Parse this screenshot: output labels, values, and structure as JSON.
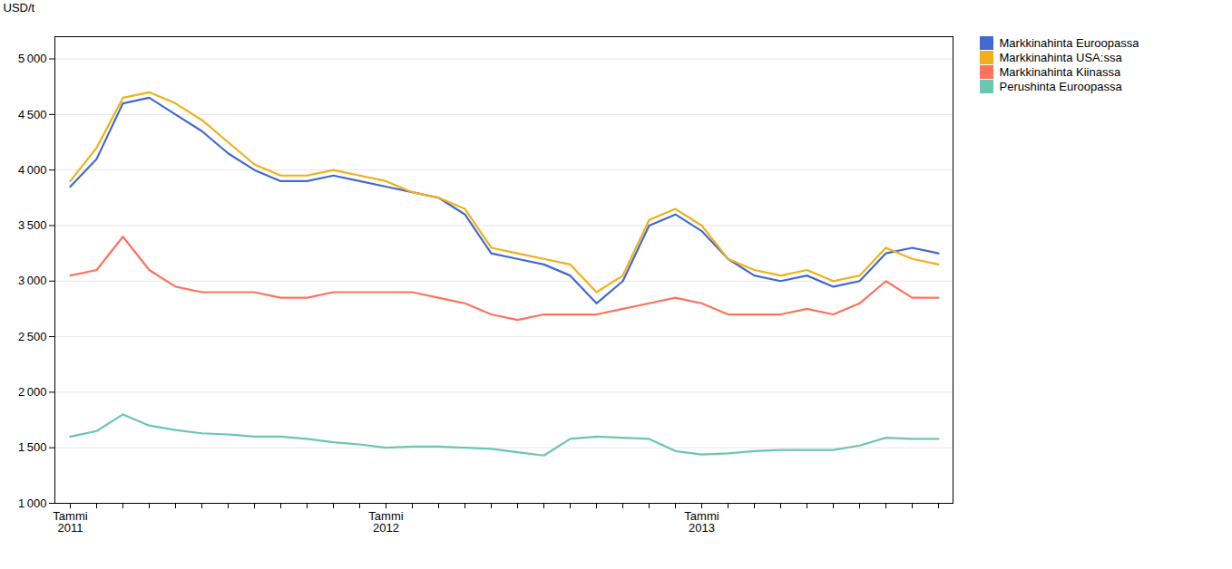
{
  "chart_data": {
    "type": "line",
    "ylabel": "USD/t",
    "categories": [
      "Tammi\n2011",
      null,
      null,
      null,
      null,
      null,
      null,
      null,
      null,
      null,
      null,
      null,
      "Tammi\n2012",
      null,
      null,
      null,
      null,
      null,
      null,
      null,
      null,
      null,
      null,
      null,
      "Tammi\n2013",
      null,
      null,
      null,
      null,
      null,
      null,
      null,
      null,
      null
    ],
    "series": [
      {
        "name": "Markkinahinta Euroopassa",
        "values": [
          3850,
          4100,
          4600,
          4650,
          4500,
          4350,
          4150,
          4000,
          3900,
          3900,
          3950,
          3900,
          3850,
          3800,
          3750,
          3600,
          3250,
          3200,
          3150,
          3050,
          2800,
          3000,
          3500,
          3600,
          3450,
          3200,
          3050,
          3000,
          3050,
          2950,
          3000,
          3250,
          3300,
          3250
        ]
      },
      {
        "name": "Markkinahinta USA:ssa",
        "values": [
          3900,
          4200,
          4650,
          4700,
          4600,
          4450,
          4250,
          4050,
          3950,
          3950,
          4000,
          3950,
          3900,
          3800,
          3750,
          3650,
          3300,
          3250,
          3200,
          3150,
          2900,
          3050,
          3550,
          3650,
          3500,
          3200,
          3100,
          3050,
          3100,
          3000,
          3050,
          3300,
          3200,
          3150
        ]
      },
      {
        "name": "Markkinahinta Kiinassa",
        "values": [
          3050,
          3100,
          3400,
          3100,
          2950,
          2900,
          2900,
          2900,
          2850,
          2850,
          2900,
          2900,
          2900,
          2900,
          2850,
          2800,
          2700,
          2650,
          2700,
          2700,
          2700,
          2750,
          2800,
          2850,
          2800,
          2700,
          2700,
          2700,
          2750,
          2700,
          2800,
          3000,
          2850,
          2850
        ]
      },
      {
        "name": "Perushinta Euroopassa",
        "values": [
          1600,
          1650,
          1800,
          1700,
          1660,
          1630,
          1620,
          1600,
          1600,
          1580,
          1550,
          1530,
          1500,
          1510,
          1510,
          1500,
          1490,
          1460,
          1430,
          1580,
          1600,
          1590,
          1580,
          1470,
          1440,
          1450,
          1470,
          1480,
          1480,
          1480,
          1520,
          1590,
          1580,
          1580
        ]
      }
    ],
    "ylim": [
      1000,
      5200
    ],
    "yticks": [
      {
        "value": 1000,
        "label": "1 000"
      },
      {
        "value": 1500,
        "label": "1 500"
      },
      {
        "value": 2000,
        "label": "2 000"
      },
      {
        "value": 2500,
        "label": "2 500"
      },
      {
        "value": 3000,
        "label": "3 000"
      },
      {
        "value": 3500,
        "label": "3 500"
      },
      {
        "value": 4000,
        "label": "4 000"
      },
      {
        "value": 4500,
        "label": "4 500"
      },
      {
        "value": 5000,
        "label": "5 000"
      }
    ],
    "grid": true,
    "legend": "right"
  }
}
